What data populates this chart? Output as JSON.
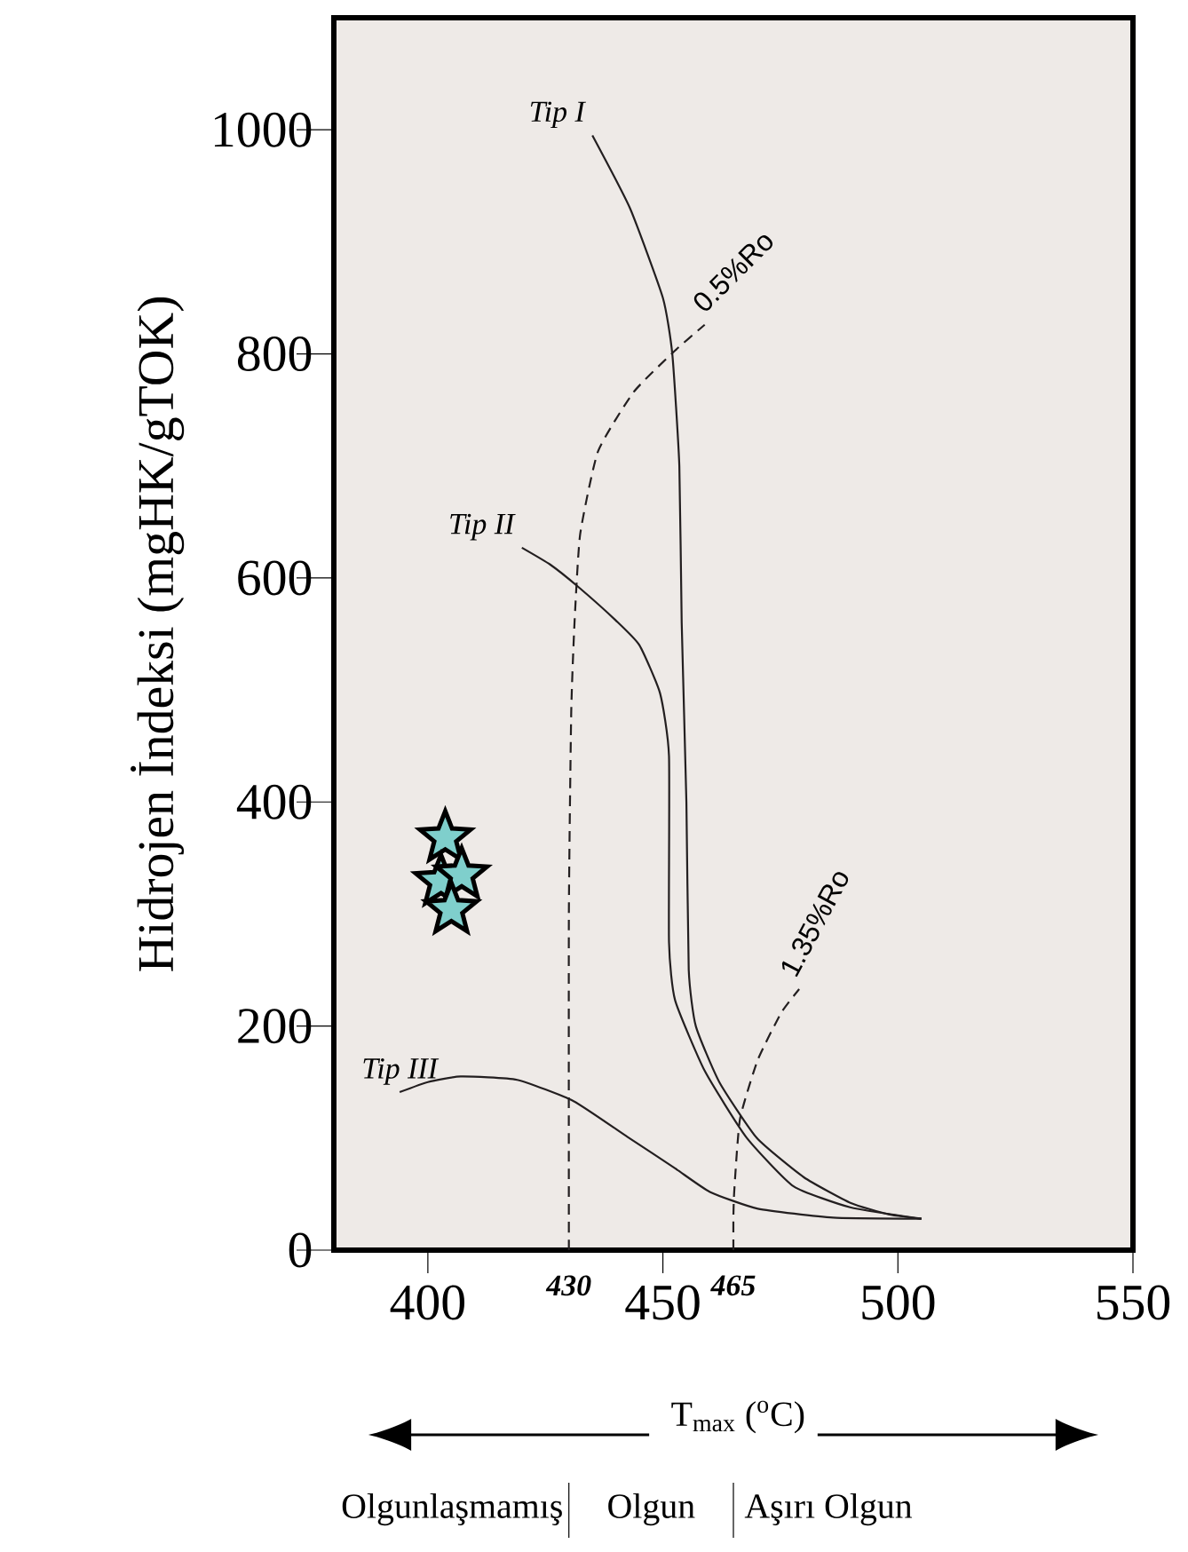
{
  "chart_data": {
    "type": "line",
    "xlabel": "T$_{max}$ ($^{o}$C)",
    "ylabel": "Hidrojen İndeksi (mgHK/gTOK)",
    "xlim": [
      380,
      550
    ],
    "ylim": [
      0,
      1100
    ],
    "xticks": [
      400,
      450,
      500,
      550
    ],
    "yticks": [
      0,
      200,
      400,
      600,
      800,
      1000
    ],
    "grid": false,
    "series": [
      {
        "name": "Tip I",
        "color": "#231f20",
        "line_style": "solid",
        "x": [
          435,
          443,
          450,
          452,
          453.5,
          454,
          455,
          455.5,
          457,
          462,
          470,
          480,
          490,
          498,
          505
        ],
        "values": [
          995,
          930,
          850,
          800,
          700,
          560,
          400,
          250,
          200,
          150,
          100,
          65,
          42,
          32,
          28
        ]
      },
      {
        "name": "Tip II",
        "color": "#231f20",
        "line_style": "solid",
        "x": [
          420,
          426,
          432,
          440,
          445,
          449.4,
          451.3,
          451.3,
          452.6,
          458.9,
          467.7,
          477.8,
          490,
          505
        ],
        "values": [
          627,
          612,
          592,
          562,
          540,
          497,
          441,
          275,
          223,
          160,
          101,
          57,
          38,
          28
        ]
      },
      {
        "name": "Tip III",
        "color": "#231f20",
        "line_style": "solid",
        "x": [
          394,
          400,
          407,
          419,
          431,
          442.5,
          452.6,
          460,
          470.2,
          486.2,
          505
        ],
        "values": [
          141,
          150,
          155,
          152,
          133,
          101,
          73,
          52,
          37,
          29,
          28
        ]
      },
      {
        "name": "0.5%Ro",
        "color": "#231f20",
        "line_style": "dashed",
        "x": [
          430,
          430,
          430.5,
          431.2,
          432.4,
          436.2,
          443.8,
          452.6,
          458.9
        ],
        "values": [
          0,
          300,
          480,
          560,
          639,
          713,
          766,
          803,
          826
        ]
      },
      {
        "name": "1.35%Ro",
        "color": "#231f20",
        "line_style": "dashed",
        "x": [
          465,
          465,
          465.2,
          466.4,
          470.2,
          475.2,
          479
        ],
        "values": [
          0,
          30,
          54,
          117,
          170,
          212,
          233
        ]
      },
      {
        "type": "scatter",
        "color": "#7fcfcc",
        "marker": "star",
        "x": [
          403.7,
          402.8,
          407.2,
          405
        ],
        "values": [
          368,
          329,
          335,
          304
        ]
      }
    ],
    "annotations": [
      {
        "text": "430",
        "x": 430,
        "y": 0
      },
      {
        "text": "465",
        "x": 465,
        "y": 0
      },
      "Olgunlaşmamış",
      "Olgun",
      "Aşırı Olgun"
    ]
  }
}
